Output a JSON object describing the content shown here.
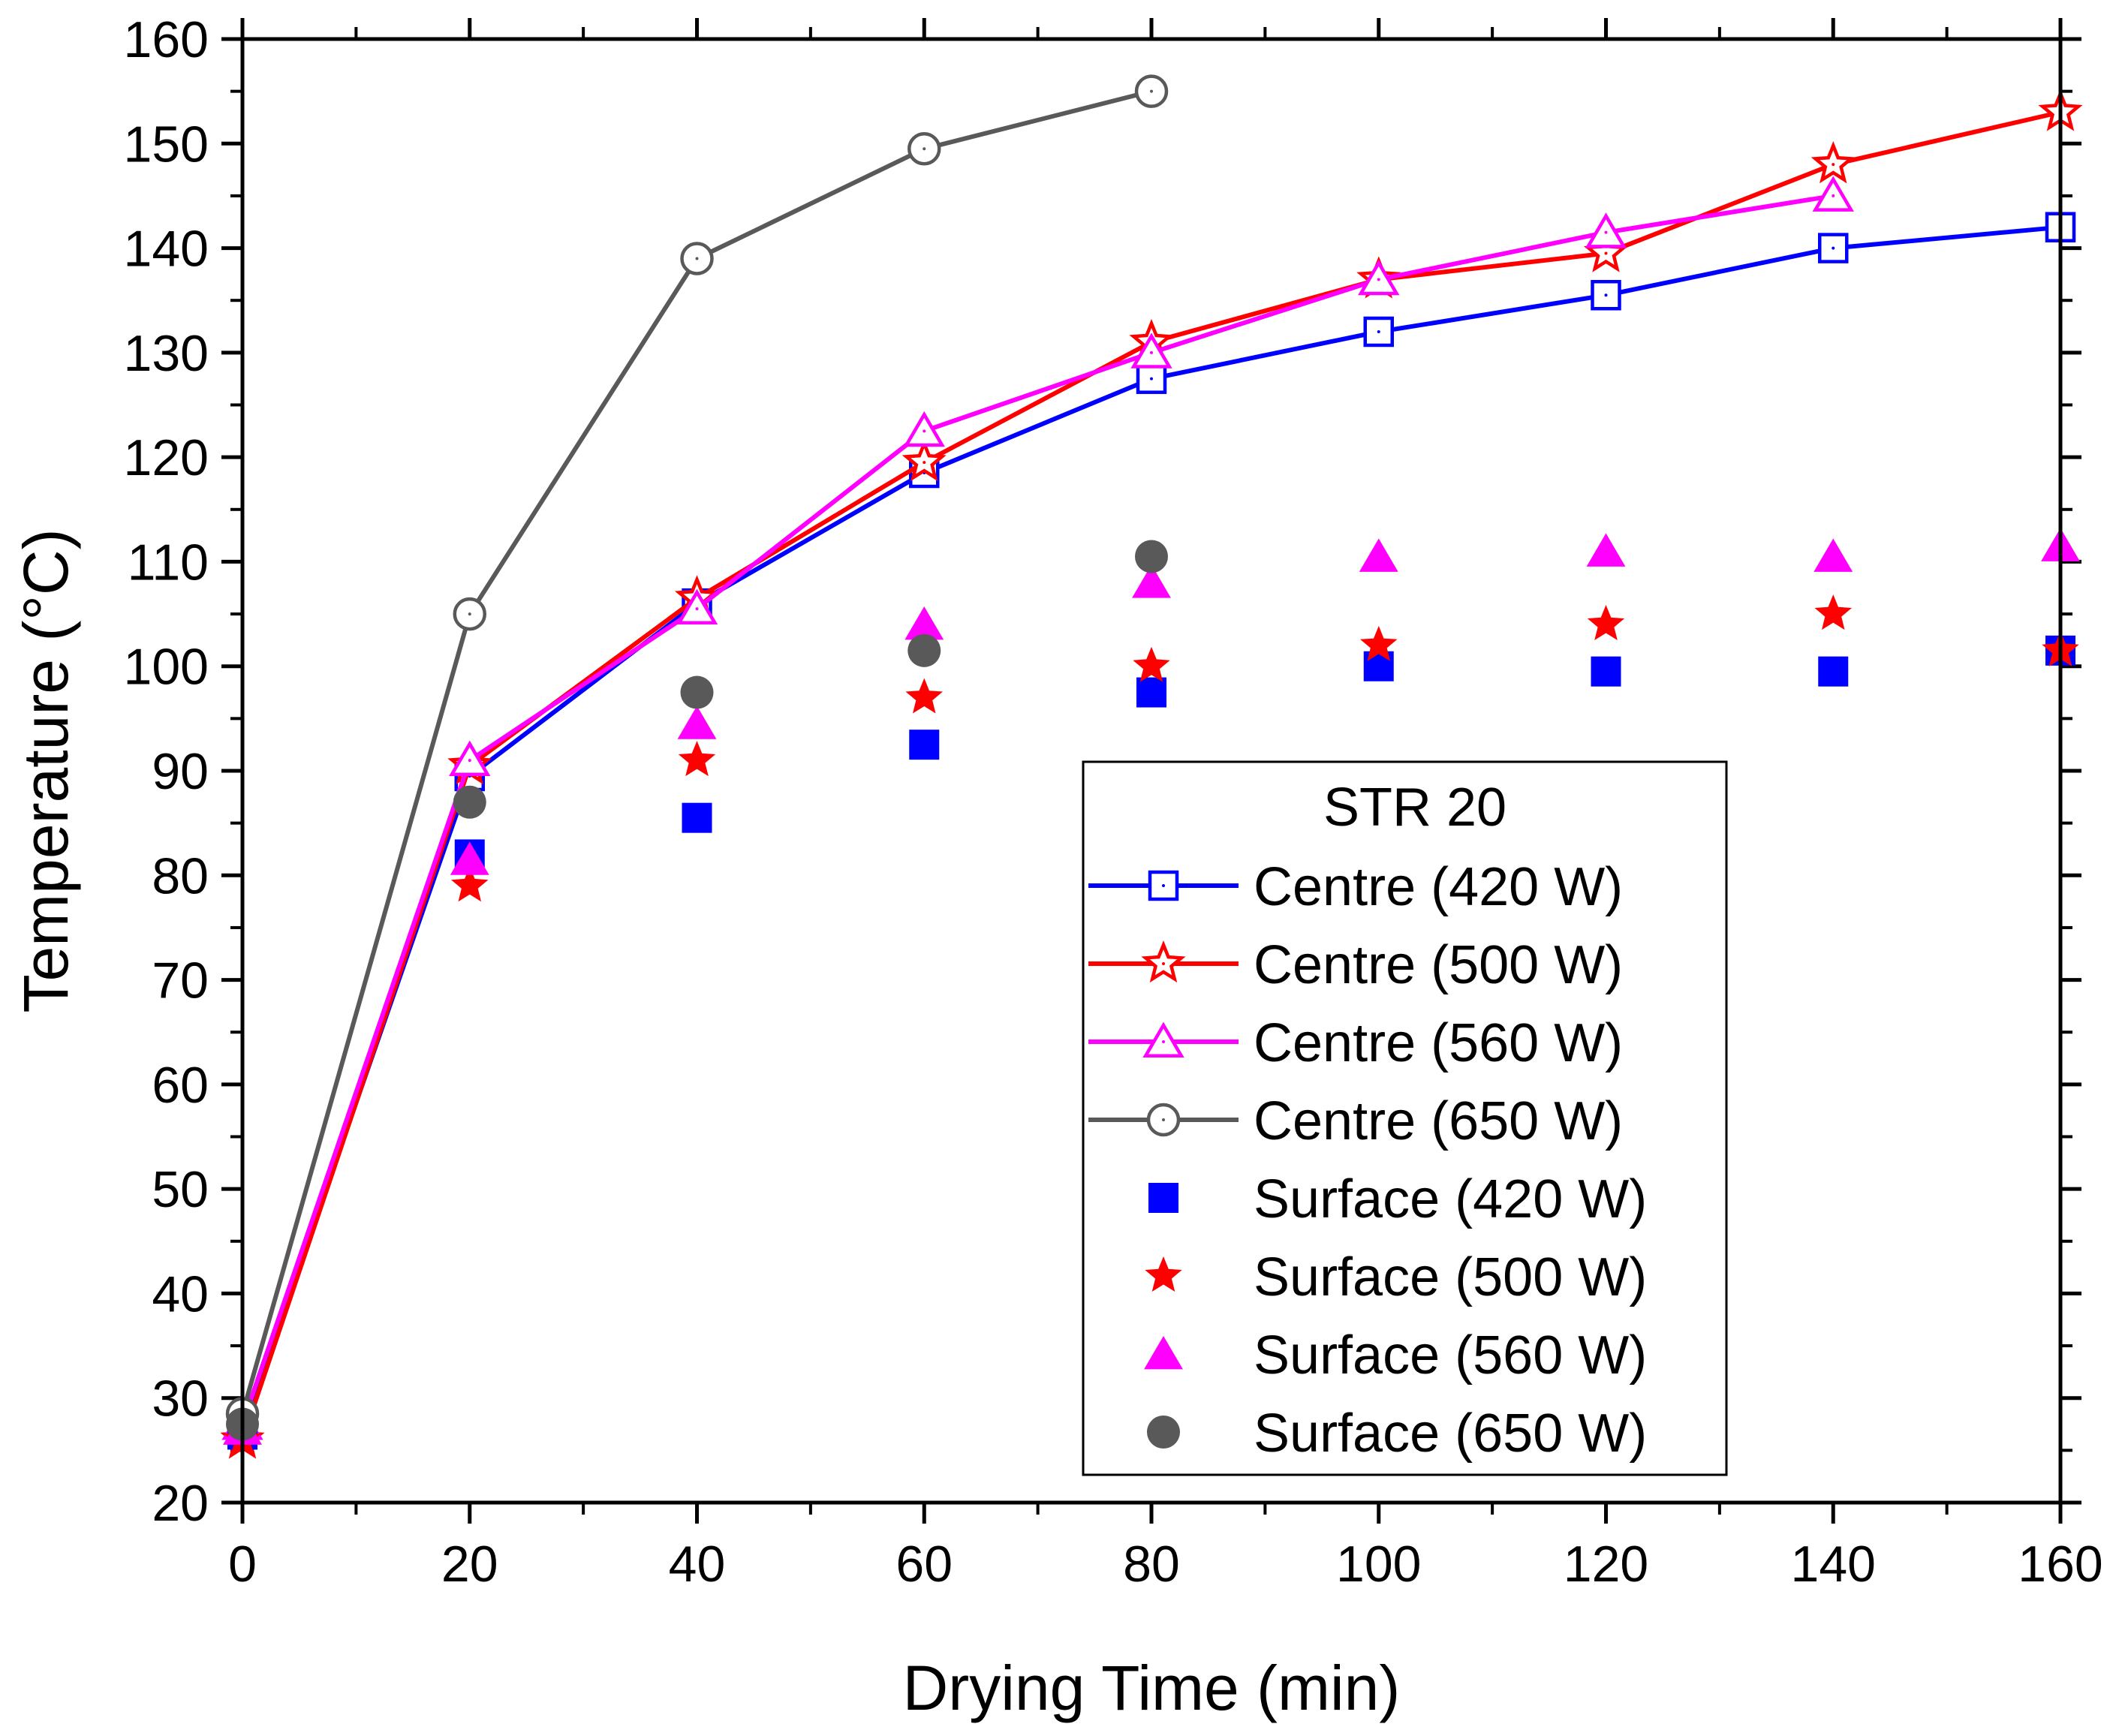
{
  "chart_data": {
    "type": "line",
    "xlabel": "Drying Time (min)",
    "ylabel": "Temperature (°C)",
    "xlim": [
      0,
      160
    ],
    "ylim": [
      20,
      160
    ],
    "xticks": [
      0,
      20,
      40,
      60,
      80,
      100,
      120,
      140,
      160
    ],
    "yticks": [
      20,
      30,
      40,
      50,
      60,
      70,
      80,
      90,
      100,
      110,
      120,
      130,
      140,
      150,
      160
    ],
    "grid": false,
    "legend": {
      "title": "STR 20",
      "placement": "lower-right"
    },
    "series": [
      {
        "name": "Centre (420 W)",
        "color": "#0000ff",
        "marker": "square-open",
        "line": true,
        "x": [
          0,
          20,
          40,
          60,
          80,
          100,
          120,
          140,
          160
        ],
        "y": [
          27,
          89.5,
          106,
          118.5,
          127.5,
          132,
          135.5,
          140,
          142
        ]
      },
      {
        "name": "Centre (500 W)",
        "color": "#ff0000",
        "marker": "star-open",
        "line": true,
        "x": [
          0,
          20,
          40,
          60,
          80,
          100,
          120,
          140,
          160
        ],
        "y": [
          26,
          90.5,
          106.5,
          119.5,
          131,
          137,
          139.5,
          148,
          153
        ]
      },
      {
        "name": "Centre (560 W)",
        "color": "#ff00ff",
        "marker": "triangle-open",
        "line": true,
        "x": [
          0,
          20,
          40,
          60,
          80,
          100,
          120,
          140
        ],
        "y": [
          27.5,
          91,
          105.5,
          122.5,
          130,
          137,
          141.5,
          145
        ]
      },
      {
        "name": "Centre (650 W)",
        "color": "#595959",
        "marker": "circle-open",
        "line": true,
        "x": [
          0,
          20,
          40,
          60,
          80
        ],
        "y": [
          28.5,
          105,
          139,
          149.5,
          155
        ]
      },
      {
        "name": "Surface (420 W)",
        "color": "#0000ff",
        "marker": "square",
        "line": false,
        "x": [
          0,
          20,
          40,
          60,
          80,
          100,
          120,
          140,
          160
        ],
        "y": [
          26.5,
          82,
          85.5,
          92.5,
          97.5,
          100,
          99.5,
          99.5,
          101.5
        ]
      },
      {
        "name": "Surface (500 W)",
        "color": "#ff0000",
        "marker": "star",
        "line": false,
        "x": [
          0,
          20,
          40,
          60,
          80,
          100,
          120,
          140,
          160
        ],
        "y": [
          26,
          79,
          91,
          97,
          100,
          102,
          104,
          105,
          101.5
        ]
      },
      {
        "name": "Surface (560 W)",
        "color": "#ff00ff",
        "marker": "triangle",
        "line": false,
        "x": [
          0,
          20,
          40,
          60,
          80,
          100,
          120,
          140,
          160
        ],
        "y": [
          27,
          81.5,
          94.5,
          104,
          108,
          110.5,
          111,
          110.5,
          111.5
        ]
      },
      {
        "name": "Surface (650 W)",
        "color": "#595959",
        "marker": "circle",
        "line": false,
        "x": [
          0,
          20,
          40,
          60,
          80
        ],
        "y": [
          27.5,
          87,
          97.5,
          101.5,
          110.5
        ]
      }
    ]
  }
}
